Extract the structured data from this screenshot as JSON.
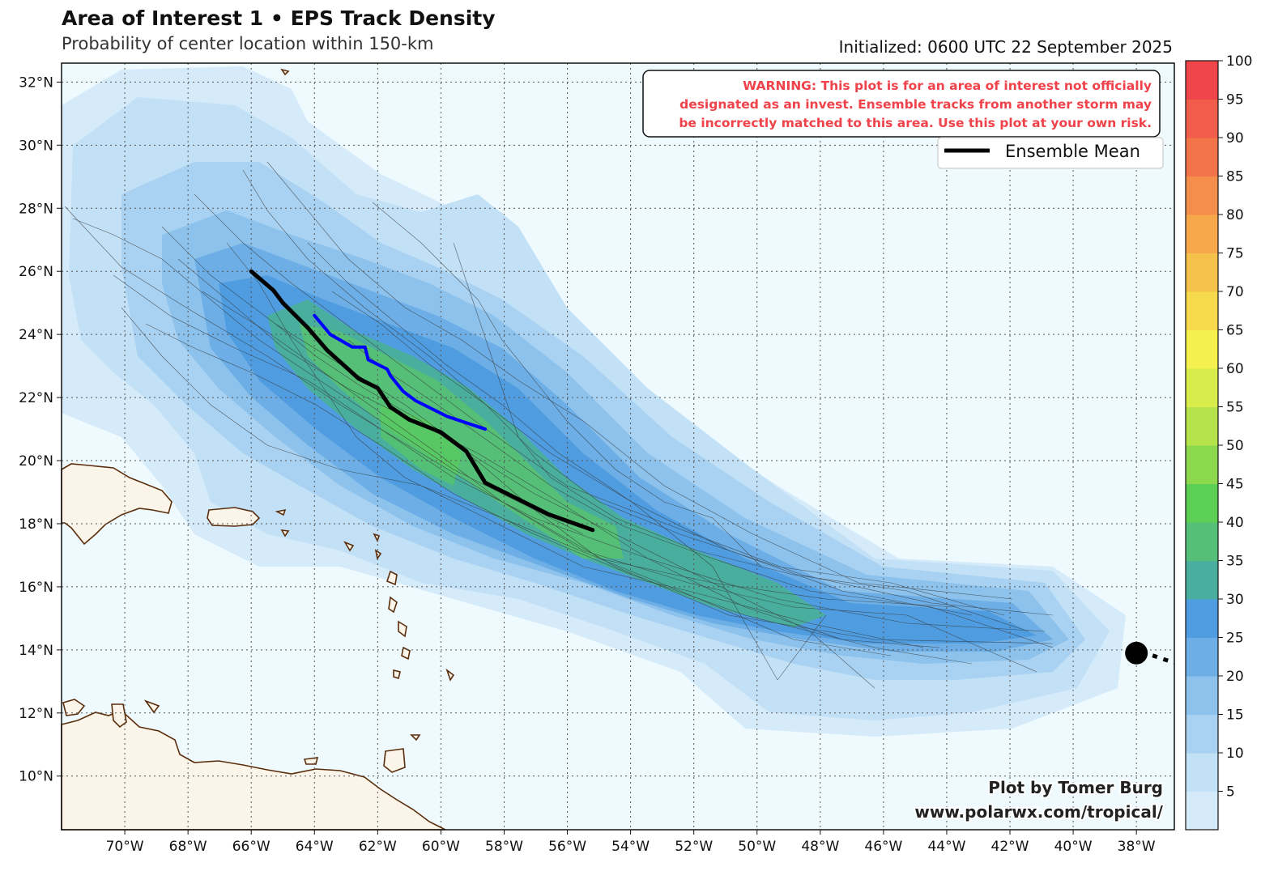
{
  "header": {
    "title": "Area of Interest 1 • EPS Track Density",
    "subtitle": "Probability of center location within 150-km",
    "initialized": "Initialized: 0600 UTC 22 September 2025"
  },
  "warning": {
    "lines": [
      "WARNING: This plot is for an area of interest not officially",
      "designated as an invest. Ensemble tracks from another storm may",
      "be incorrectly matched to this area. Use this plot at your own risk."
    ],
    "color": "#f0424a"
  },
  "legend": {
    "label": "Ensemble Mean"
  },
  "credit": {
    "line1": "Plot by Tomer Burg",
    "line2": "www.polarwx.com/tropical/"
  },
  "axes": {
    "lat_labels": [
      "32°N",
      "30°N",
      "28°N",
      "26°N",
      "24°N",
      "22°N",
      "20°N",
      "18°N",
      "16°N",
      "14°N",
      "12°N",
      "10°N"
    ],
    "lat_values": [
      32,
      30,
      28,
      26,
      24,
      22,
      20,
      18,
      16,
      14,
      12,
      10
    ],
    "lon_labels": [
      "70°W",
      "68°W",
      "66°W",
      "64°W",
      "62°W",
      "60°W",
      "58°W",
      "56°W",
      "54°W",
      "52°W",
      "50°W",
      "48°W",
      "46°W",
      "44°W",
      "42°W",
      "40°W",
      "38°W"
    ],
    "lon_values": [
      -70,
      -68,
      -66,
      -64,
      -62,
      -60,
      -58,
      -56,
      -54,
      -52,
      -50,
      -48,
      -46,
      -44,
      -42,
      -40,
      -38
    ],
    "lon_range": [
      -72,
      -36.8
    ],
    "lat_range": [
      8.3,
      32.6
    ]
  },
  "colorbar": {
    "ticks": [
      "5",
      "10",
      "15",
      "20",
      "25",
      "30",
      "35",
      "40",
      "45",
      "50",
      "55",
      "60",
      "65",
      "70",
      "75",
      "80",
      "85",
      "90",
      "95",
      "100"
    ],
    "colors": [
      "#d6ebfa",
      "#c2e0f6",
      "#a9d2f2",
      "#8cc2ec",
      "#6caee5",
      "#4f9de0",
      "#4aae9e",
      "#55bf78",
      "#5bd054",
      "#8cd94e",
      "#b6e34b",
      "#d8ec4c",
      "#f4f14e",
      "#f7da4c",
      "#f6c14b",
      "#f6a84a",
      "#f58e4a",
      "#f4744a",
      "#f25c4a",
      "#f0454a"
    ]
  },
  "land_color": "#fbf5e9",
  "ocean_color": "#eefafd",
  "chart_data": {
    "type": "map",
    "ensemble_mean_track": {
      "name": "Ensemble Mean",
      "color": "#000000",
      "points": [
        [
          -66.0,
          26.0
        ],
        [
          -65.3,
          25.4
        ],
        [
          -65.0,
          25.0
        ],
        [
          -64.2,
          24.2
        ],
        [
          -63.6,
          23.5
        ],
        [
          -62.6,
          22.6
        ],
        [
          -62.0,
          22.3
        ],
        [
          -61.6,
          21.7
        ],
        [
          -61.0,
          21.3
        ],
        [
          -60.0,
          20.9
        ],
        [
          -59.2,
          20.3
        ],
        [
          -58.6,
          19.3
        ],
        [
          -56.6,
          18.3
        ],
        [
          -55.2,
          17.8
        ]
      ]
    },
    "operational_track": {
      "color": "#0000ff",
      "points": [
        [
          -64.0,
          24.6
        ],
        [
          -63.5,
          24.0
        ],
        [
          -62.8,
          23.6
        ],
        [
          -62.4,
          23.6
        ],
        [
          -62.3,
          23.2
        ],
        [
          -61.7,
          22.9
        ],
        [
          -61.6,
          22.7
        ],
        [
          -61.2,
          22.2
        ],
        [
          -60.8,
          21.9
        ],
        [
          -59.8,
          21.4
        ],
        [
          -58.6,
          21.0
        ]
      ]
    },
    "storm_marker": {
      "lon": -38.0,
      "lat": 13.9
    }
  }
}
